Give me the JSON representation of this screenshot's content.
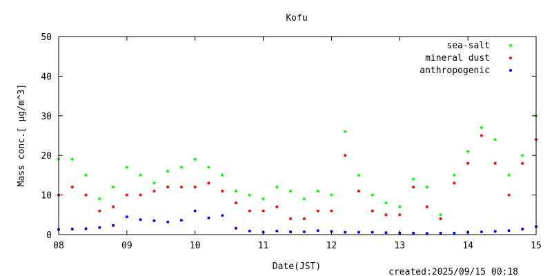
{
  "chart_data": {
    "type": "scatter",
    "title": "Kofu",
    "xlabel": "Date(JST)",
    "ylabel": "Mass conc.[ μg/m^3]",
    "ylim": [
      0,
      50
    ],
    "xlim": [
      8,
      15
    ],
    "x_ticks": [
      "08",
      "09",
      "10",
      "11",
      "12",
      "13",
      "14",
      "15"
    ],
    "y_ticks": [
      "0",
      "10",
      "20",
      "30",
      "40",
      "50"
    ],
    "legend_position": "top-right",
    "grid": false,
    "series": [
      {
        "name": "sea-salt",
        "color": "#00ff00",
        "x": [
          8.0,
          8.2,
          8.4,
          8.6,
          8.8,
          9.0,
          9.2,
          9.4,
          9.6,
          9.8,
          10.0,
          10.2,
          10.4,
          10.6,
          10.8,
          11.0,
          11.2,
          11.4,
          11.6,
          11.8,
          12.0,
          12.2,
          12.4,
          12.6,
          12.8,
          13.0,
          13.2,
          13.4,
          13.6,
          13.8,
          14.0,
          14.2,
          14.4,
          14.6,
          14.8,
          15.0
        ],
        "values": [
          19,
          19,
          15,
          9,
          12,
          17,
          15,
          13,
          16,
          17,
          19,
          17,
          15,
          11,
          10,
          9,
          12,
          11,
          9,
          11,
          10,
          26,
          15,
          10,
          8,
          7,
          14,
          12,
          5,
          15,
          21,
          27,
          24,
          15,
          20,
          30
        ]
      },
      {
        "name": "mineral dust",
        "color": "#ff0000",
        "x": [
          8.0,
          8.2,
          8.4,
          8.6,
          8.8,
          9.0,
          9.2,
          9.4,
          9.6,
          9.8,
          10.0,
          10.2,
          10.4,
          10.6,
          10.8,
          11.0,
          11.2,
          11.4,
          11.6,
          11.8,
          12.0,
          12.2,
          12.4,
          12.6,
          12.8,
          13.0,
          13.2,
          13.4,
          13.6,
          13.8,
          14.0,
          14.2,
          14.4,
          14.6,
          14.8,
          15.0
        ],
        "values": [
          10,
          12,
          10,
          6,
          7,
          10,
          10,
          11,
          12,
          12,
          12,
          13,
          11,
          8,
          6,
          6,
          7,
          4,
          4,
          6,
          6,
          20,
          11,
          6,
          5,
          5,
          12,
          7,
          4,
          13,
          18,
          25,
          18,
          10,
          18,
          24
        ]
      },
      {
        "name": "anthropogenic",
        "color": "#0000ff",
        "x": [
          8.0,
          8.2,
          8.4,
          8.6,
          8.8,
          9.0,
          9.2,
          9.4,
          9.6,
          9.8,
          10.0,
          10.2,
          10.4,
          10.6,
          10.8,
          11.0,
          11.2,
          11.4,
          11.6,
          11.8,
          12.0,
          12.2,
          12.4,
          12.6,
          12.8,
          13.0,
          13.2,
          13.4,
          13.6,
          13.8,
          14.0,
          14.2,
          14.4,
          14.6,
          14.8,
          15.0
        ],
        "values": [
          1.3,
          1.4,
          1.5,
          1.8,
          2.3,
          4.5,
          3.8,
          3.5,
          3.2,
          3.6,
          6.0,
          4.2,
          4.8,
          1.6,
          0.9,
          0.6,
          0.9,
          0.7,
          0.7,
          1.0,
          0.8,
          0.6,
          0.6,
          0.6,
          0.5,
          0.4,
          0.4,
          0.3,
          0.4,
          0.4,
          0.6,
          0.7,
          0.8,
          1.0,
          1.4,
          2.0
        ]
      }
    ]
  },
  "footer": {
    "created": "created:2025/09/15 00:18"
  }
}
